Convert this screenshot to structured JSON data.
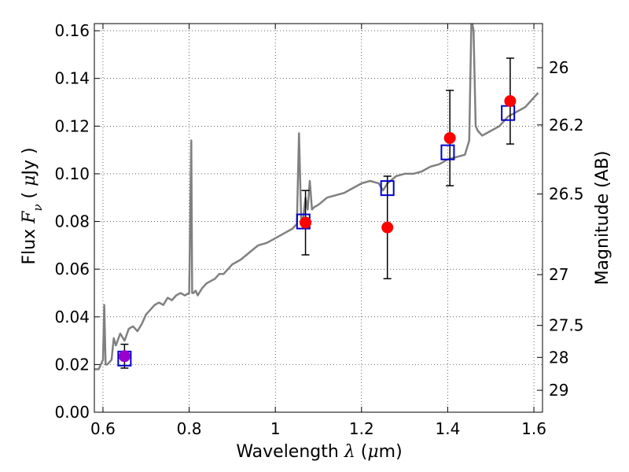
{
  "chart_data": {
    "type": "scatter",
    "xlabel": {
      "prefix": "Wavelength  ",
      "symbol": "λ",
      "middle": " (",
      "mu": "μ",
      "suffix": "m)"
    },
    "ylabel": {
      "prefix": "Flux  ",
      "symbol": "F",
      "subscript": "ν",
      "middle": "  ( ",
      "mu": "μ",
      "suffix": "Jy )"
    },
    "ylabel_right": "Magnitude (AB)",
    "xlim": [
      0.58,
      1.62
    ],
    "ylim": [
      0.0,
      0.163
    ],
    "x_ticks": [
      0.6,
      0.8,
      1.0,
      1.2,
      1.4,
      1.6
    ],
    "x_tick_labels": [
      "0.6",
      "0.8",
      "1",
      "1.2",
      "1.4",
      "1.6"
    ],
    "y_ticks": [
      0.0,
      0.02,
      0.04,
      0.06,
      0.08,
      0.1,
      0.12,
      0.14,
      0.16
    ],
    "y_tick_labels": [
      "0.00",
      "0.02",
      "0.04",
      "0.06",
      "0.08",
      "0.10",
      "0.12",
      "0.14",
      "0.16"
    ],
    "right_ticks": [
      {
        "label": "26",
        "flux": 0.1445
      },
      {
        "label": "26.2",
        "flux": 0.1205
      },
      {
        "label": "26.5",
        "flux": 0.0915
      },
      {
        "label": "27",
        "flux": 0.0577
      },
      {
        "label": "27.5",
        "flux": 0.0364
      },
      {
        "label": "28",
        "flux": 0.023
      },
      {
        "label": "29",
        "flux": 0.0092
      }
    ],
    "grid": true,
    "grid_style": "dotted",
    "colors": {
      "spectrum": "#808080",
      "observed": "#ff0000",
      "model": "#0000cc",
      "overlap": "#9900cc",
      "errorbar": "#000000"
    },
    "series": [
      {
        "kind": "line",
        "x": [
          0.58,
          0.59,
          0.6,
          0.603,
          0.606,
          0.61,
          0.62,
          0.625,
          0.63,
          0.64,
          0.65,
          0.66,
          0.67,
          0.68,
          0.69,
          0.7,
          0.71,
          0.72,
          0.73,
          0.74,
          0.75,
          0.76,
          0.77,
          0.78,
          0.79,
          0.8,
          0.805,
          0.807,
          0.81,
          0.815,
          0.82,
          0.83,
          0.84,
          0.85,
          0.86,
          0.87,
          0.88,
          0.89,
          0.9,
          0.92,
          0.94,
          0.96,
          0.98,
          1.0,
          1.02,
          1.04,
          1.05,
          1.055,
          1.06,
          1.065,
          1.07,
          1.075,
          1.08,
          1.085,
          1.09,
          1.1,
          1.12,
          1.14,
          1.16,
          1.18,
          1.2,
          1.22,
          1.24,
          1.25,
          1.26,
          1.28,
          1.3,
          1.32,
          1.34,
          1.36,
          1.38,
          1.4,
          1.42,
          1.44,
          1.45,
          1.455,
          1.46,
          1.465,
          1.47,
          1.48,
          1.5,
          1.52,
          1.54,
          1.56,
          1.58,
          1.6,
          1.61
        ],
        "y": [
          0.018,
          0.018,
          0.022,
          0.045,
          0.02,
          0.02,
          0.022,
          0.031,
          0.028,
          0.033,
          0.03,
          0.035,
          0.036,
          0.034,
          0.037,
          0.041,
          0.043,
          0.045,
          0.046,
          0.045,
          0.048,
          0.047,
          0.049,
          0.05,
          0.049,
          0.05,
          0.114,
          0.05,
          0.05,
          0.051,
          0.049,
          0.052,
          0.054,
          0.055,
          0.056,
          0.058,
          0.058,
          0.06,
          0.062,
          0.064,
          0.067,
          0.07,
          0.071,
          0.073,
          0.075,
          0.077,
          0.079,
          0.117,
          0.08,
          0.082,
          0.09,
          0.085,
          0.097,
          0.085,
          0.086,
          0.087,
          0.09,
          0.091,
          0.092,
          0.094,
          0.096,
          0.097,
          0.096,
          0.093,
          0.096,
          0.099,
          0.1,
          0.1,
          0.101,
          0.103,
          0.104,
          0.106,
          0.107,
          0.108,
          0.114,
          0.165,
          0.16,
          0.12,
          0.118,
          0.116,
          0.118,
          0.12,
          0.124,
          0.126,
          0.128,
          0.132,
          0.134
        ]
      },
      {
        "kind": "errorbar",
        "x": [
          0.65,
          1.07,
          1.26,
          1.405,
          1.545
        ],
        "y": [
          0.0235,
          0.0795,
          0.0775,
          0.115,
          0.1305
        ],
        "yerr": [
          0.005,
          0.0135,
          0.0215,
          0.02,
          0.018
        ]
      },
      {
        "kind": "model",
        "x": [
          0.65,
          1.065,
          1.26,
          1.4,
          1.54
        ],
        "y": [
          0.0225,
          0.08,
          0.094,
          0.109,
          0.1255
        ]
      }
    ]
  }
}
